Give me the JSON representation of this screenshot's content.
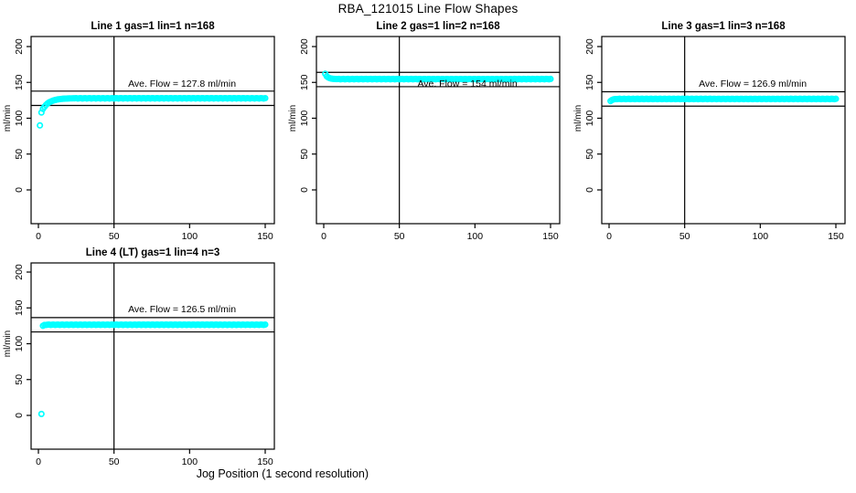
{
  "page": {
    "main_title": "RBA_121015  Line Flow Shapes",
    "x_axis_label": "Jog Position (1 second resolution)"
  },
  "colors": {
    "data_points": "#00FFFF",
    "axis": "#000000",
    "background": "#FFFFFF"
  },
  "axes": {
    "x_ticks": [
      0,
      50,
      100,
      150
    ],
    "y_ticks": [
      0,
      50,
      100,
      150,
      200
    ],
    "y_label": "ml/min",
    "x_range": [
      0,
      150
    ],
    "y_range": [
      0,
      200
    ],
    "vertical_marker_x": 50
  },
  "chart_data": [
    {
      "type": "scatter",
      "title": "Line 1 gas=1 lin=1 n=168",
      "annotation": "Ave. Flow =  127.8  ml/min",
      "avg_flow": 127.8,
      "n": 168,
      "gas": 1,
      "lin": 1,
      "xlabel": "Jog Position (1 second resolution)",
      "ylabel": "ml/min",
      "xlim": [
        0,
        150
      ],
      "ylim": [
        0,
        200
      ],
      "ref_lines": [
        137.8,
        117.8
      ],
      "head_points": [
        [
          1,
          90
        ],
        [
          2,
          108
        ],
        [
          3,
          113
        ],
        [
          4,
          116
        ],
        [
          5,
          118.5
        ],
        [
          6,
          120.5
        ],
        [
          7,
          122
        ],
        [
          8,
          123
        ],
        [
          9,
          124
        ],
        [
          10,
          124.8
        ],
        [
          11,
          125.4
        ],
        [
          12,
          125.9
        ],
        [
          13,
          126.3
        ],
        [
          14,
          126.6
        ],
        [
          15,
          126.9
        ],
        [
          16,
          127.1
        ],
        [
          17,
          127.3
        ],
        [
          18,
          127.4
        ],
        [
          19,
          127.5
        ],
        [
          20,
          127.6
        ],
        [
          21,
          127.7
        ],
        [
          22,
          127.7
        ],
        [
          23,
          127.8
        ]
      ],
      "flat_segment": {
        "from": 24,
        "to": 150,
        "value": 127.8
      }
    },
    {
      "type": "scatter",
      "title": "Line 2 gas=1 lin=2 n=168",
      "annotation": "Ave. Flow =  154  ml/min",
      "avg_flow": 154,
      "n": 168,
      "gas": 1,
      "lin": 2,
      "xlabel": "Jog Position (1 second resolution)",
      "ylabel": "ml/min",
      "xlim": [
        0,
        150
      ],
      "ylim": [
        0,
        200
      ],
      "ref_lines": [
        164,
        144
      ],
      "head_points": [
        [
          1,
          162
        ],
        [
          2,
          158.5
        ],
        [
          3,
          156.8
        ],
        [
          4,
          155.9
        ],
        [
          5,
          155.3
        ],
        [
          6,
          155
        ],
        [
          7,
          154.8
        ],
        [
          8,
          154.7
        ]
      ],
      "flat_segment": {
        "from": 9,
        "to": 150,
        "value": 154.6
      }
    },
    {
      "type": "scatter",
      "title": "Line 3 gas=1 lin=3 n=168",
      "annotation": "Ave. Flow =  126.9  ml/min",
      "avg_flow": 126.9,
      "n": 168,
      "gas": 1,
      "lin": 3,
      "xlabel": "Jog Position (1 second resolution)",
      "ylabel": "ml/min",
      "xlim": [
        0,
        150
      ],
      "ylim": [
        0,
        200
      ],
      "ref_lines": [
        136.9,
        116.9
      ],
      "head_points": [
        [
          1,
          124
        ],
        [
          2,
          125.5
        ],
        [
          3,
          126.3
        ],
        [
          4,
          126.7
        ]
      ],
      "flat_segment": {
        "from": 5,
        "to": 150,
        "value": 126.9
      }
    },
    {
      "type": "scatter",
      "title": "Line 4 (LT) gas=1 lin=4 n=3",
      "annotation": "Ave. Flow =  126.5  ml/min",
      "avg_flow": 126.5,
      "n": 3,
      "gas": 1,
      "lin": 4,
      "xlabel": "Jog Position (1 second resolution)",
      "ylabel": "ml/min",
      "xlim": [
        0,
        150
      ],
      "ylim": [
        0,
        200
      ],
      "ref_lines": [
        136.5,
        116.5
      ],
      "head_points": [
        [
          2,
          2
        ],
        [
          3,
          125
        ],
        [
          4,
          126.2
        ]
      ],
      "flat_segment": {
        "from": 5,
        "to": 150,
        "value": 126.5
      }
    }
  ]
}
